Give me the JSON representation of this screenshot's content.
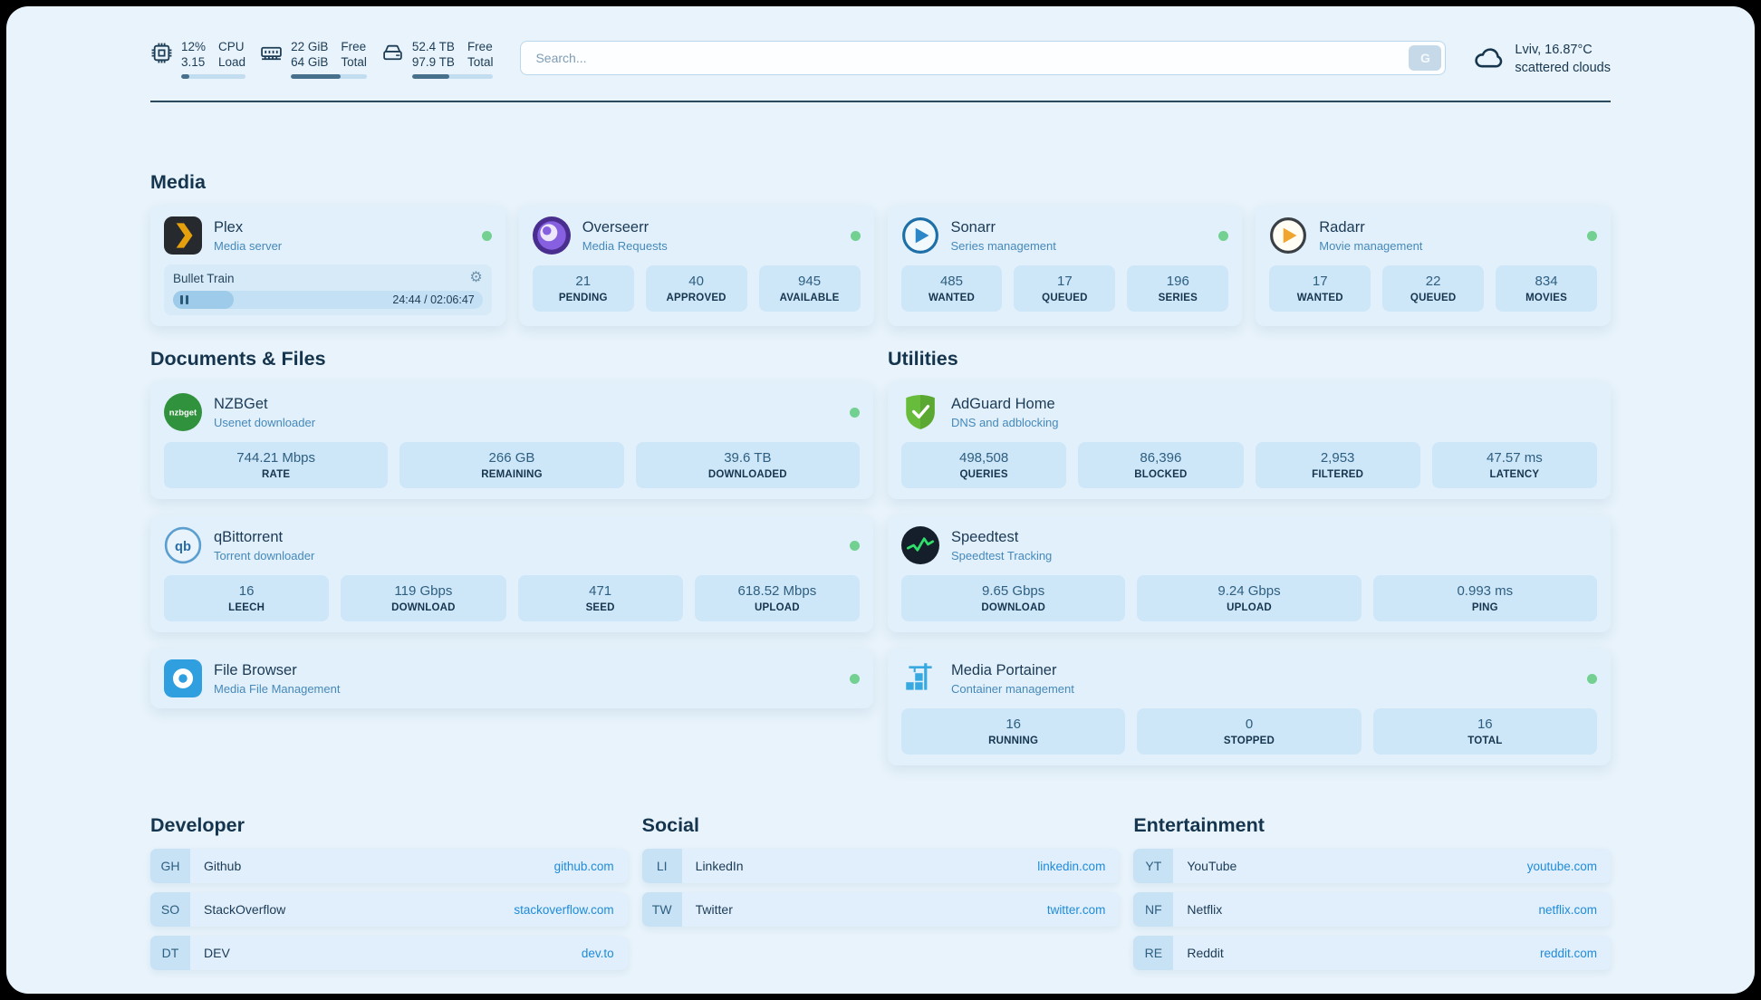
{
  "colors": {
    "status_online": "#72d091",
    "link": "#1f8bd9",
    "background": "#e8f3fb",
    "stat_box": "#cde6f8"
  },
  "icons": {
    "gear": "⚙"
  },
  "topbar": {
    "cpu": {
      "value_top": "12%",
      "value_bottom": "3.15",
      "label_top": "CPU",
      "label_bottom": "Load",
      "percent": 12
    },
    "ram": {
      "value_top": "22 GiB",
      "value_bottom": "64 GiB",
      "label_top": "Free",
      "label_bottom": "Total",
      "percent": 66
    },
    "disk": {
      "value_top": "52.4 TB",
      "value_bottom": "97.9 TB",
      "label_top": "Free",
      "label_bottom": "Total",
      "percent": 46
    },
    "search": {
      "placeholder": "Search...",
      "button_label": "G"
    },
    "weather": {
      "location": "Lviv, 16.87°C",
      "condition": "scattered clouds"
    }
  },
  "sections": {
    "media": {
      "heading": "Media",
      "plex": {
        "title": "Plex",
        "subtitle": "Media server",
        "status": "online",
        "now_playing": {
          "track": "Bullet Train",
          "time": "24:44 / 02:06:47",
          "percent": 19.5
        }
      },
      "overseerr": {
        "title": "Overseerr",
        "subtitle": "Media Requests",
        "status": "online",
        "stats": [
          {
            "value": "21",
            "label": "PENDING"
          },
          {
            "value": "40",
            "label": "APPROVED"
          },
          {
            "value": "945",
            "label": "AVAILABLE"
          }
        ]
      },
      "sonarr": {
        "title": "Sonarr",
        "subtitle": "Series management",
        "status": "online",
        "stats": [
          {
            "value": "485",
            "label": "WANTED"
          },
          {
            "value": "17",
            "label": "QUEUED"
          },
          {
            "value": "196",
            "label": "SERIES"
          }
        ]
      },
      "radarr": {
        "title": "Radarr",
        "subtitle": "Movie management",
        "status": "online",
        "stats": [
          {
            "value": "17",
            "label": "WANTED"
          },
          {
            "value": "22",
            "label": "QUEUED"
          },
          {
            "value": "834",
            "label": "MOVIES"
          }
        ]
      }
    },
    "documents": {
      "heading": "Documents & Files",
      "nzbget": {
        "title": "NZBGet",
        "subtitle": "Usenet downloader",
        "status": "online",
        "stats": [
          {
            "value": "744.21 Mbps",
            "label": "RATE"
          },
          {
            "value": "266 GB",
            "label": "REMAINING"
          },
          {
            "value": "39.6 TB",
            "label": "DOWNLOADED"
          }
        ]
      },
      "qbittorrent": {
        "title": "qBittorrent",
        "subtitle": "Torrent downloader",
        "status": "online",
        "stats": [
          {
            "value": "16",
            "label": "LEECH"
          },
          {
            "value": "119 Gbps",
            "label": "DOWNLOAD"
          },
          {
            "value": "471",
            "label": "SEED"
          },
          {
            "value": "618.52 Mbps",
            "label": "UPLOAD"
          }
        ]
      },
      "filebrowser": {
        "title": "File Browser",
        "subtitle": "Media File Management",
        "status": "online"
      }
    },
    "utilities": {
      "heading": "Utilities",
      "adguard": {
        "title": "AdGuard Home",
        "subtitle": "DNS and adblocking",
        "stats": [
          {
            "value": "498,508",
            "label": "QUERIES"
          },
          {
            "value": "86,396",
            "label": "BLOCKED"
          },
          {
            "value": "2,953",
            "label": "FILTERED"
          },
          {
            "value": "47.57 ms",
            "label": "LATENCY"
          }
        ]
      },
      "speedtest": {
        "title": "Speedtest",
        "subtitle": "Speedtest Tracking",
        "stats": [
          {
            "value": "9.65 Gbps",
            "label": "DOWNLOAD"
          },
          {
            "value": "9.24 Gbps",
            "label": "UPLOAD"
          },
          {
            "value": "0.993 ms",
            "label": "PING"
          }
        ]
      },
      "portainer": {
        "title": "Media Portainer",
        "subtitle": "Container management",
        "status": "online",
        "stats": [
          {
            "value": "16",
            "label": "RUNNING"
          },
          {
            "value": "0",
            "label": "STOPPED"
          },
          {
            "value": "16",
            "label": "TOTAL"
          }
        ]
      }
    },
    "bookmarks": {
      "developer": {
        "heading": "Developer",
        "items": [
          {
            "abbr": "GH",
            "name": "Github",
            "url": "github.com"
          },
          {
            "abbr": "SO",
            "name": "StackOverflow",
            "url": "stackoverflow.com"
          },
          {
            "abbr": "DT",
            "name": "DEV",
            "url": "dev.to"
          }
        ]
      },
      "social": {
        "heading": "Social",
        "items": [
          {
            "abbr": "LI",
            "name": "LinkedIn",
            "url": "linkedin.com"
          },
          {
            "abbr": "TW",
            "name": "Twitter",
            "url": "twitter.com"
          }
        ]
      },
      "entertainment": {
        "heading": "Entertainment",
        "items": [
          {
            "abbr": "YT",
            "name": "YouTube",
            "url": "youtube.com"
          },
          {
            "abbr": "NF",
            "name": "Netflix",
            "url": "netflix.com"
          },
          {
            "abbr": "RE",
            "name": "Reddit",
            "url": "reddit.com"
          }
        ]
      }
    }
  }
}
